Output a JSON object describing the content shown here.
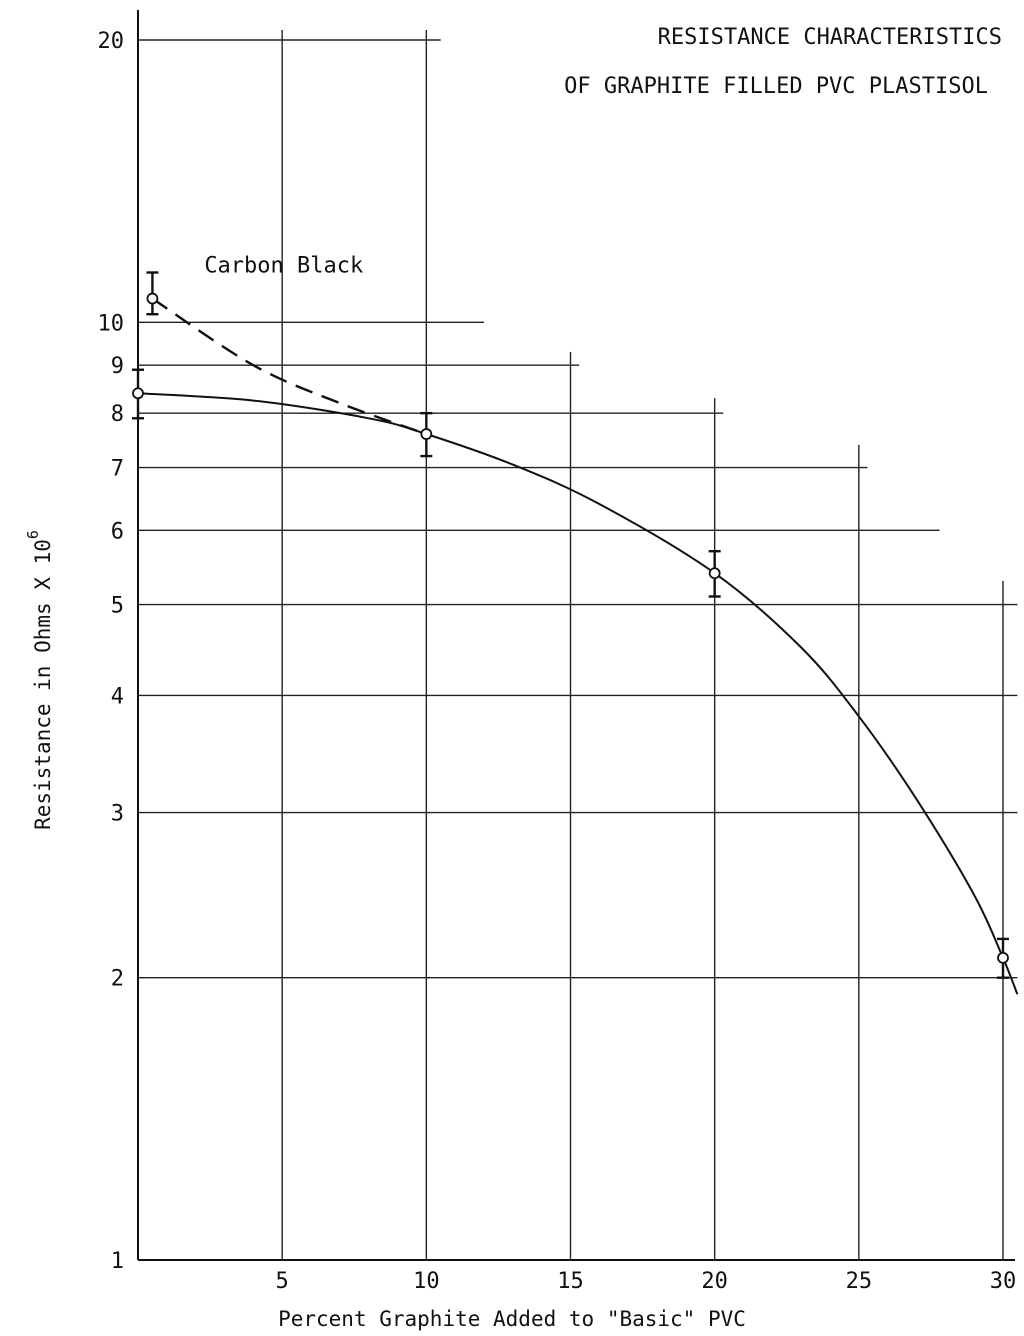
{
  "chart_data": {
    "type": "line",
    "title": "RESISTANCE CHARACTERISTICS",
    "subtitle": "OF GRAPHITE FILLED PVC PLASTISOL",
    "xlabel": "Percent Graphite Added to \"Basic\" PVC",
    "ylabel": "Resistance in Ohms X 10",
    "ylabel_exponent": "6",
    "x_scale": "linear",
    "y_scale": "log",
    "xlim": [
      0,
      30.5
    ],
    "ylim": [
      1,
      20
    ],
    "grid": true,
    "x_ticks": [
      {
        "value": 5,
        "label": "5"
      },
      {
        "value": 10,
        "label": "10"
      },
      {
        "value": 15,
        "label": "15"
      },
      {
        "value": 20,
        "label": "20"
      },
      {
        "value": 25,
        "label": "25"
      },
      {
        "value": 30,
        "label": "30"
      }
    ],
    "y_ticks": [
      {
        "value": 1,
        "label": "1"
      },
      {
        "value": 2,
        "label": "2"
      },
      {
        "value": 3,
        "label": "3"
      },
      {
        "value": 4,
        "label": "4"
      },
      {
        "value": 5,
        "label": "5"
      },
      {
        "value": 6,
        "label": "6"
      },
      {
        "value": 7,
        "label": "7"
      },
      {
        "value": 8,
        "label": "8"
      },
      {
        "value": 9,
        "label": "9"
      },
      {
        "value": 10,
        "label": "10"
      },
      {
        "value": 20,
        "label": "20"
      }
    ],
    "annotations": [
      {
        "text": "Carbon Black",
        "x": 2.3,
        "y": 11.3
      }
    ],
    "series": [
      {
        "style": "solid",
        "points": [
          {
            "x": 0,
            "y": 8.4,
            "err_low": 7.9,
            "err_high": 8.9
          },
          {
            "x": 10,
            "y": 7.6,
            "err_low": 7.2,
            "err_high": 8.0
          },
          {
            "x": 20,
            "y": 5.4,
            "err_low": 5.1,
            "err_high": 5.7
          },
          {
            "x": 30,
            "y": 2.1,
            "err_low": 2.0,
            "err_high": 2.2
          }
        ],
        "curve": [
          [
            0,
            8.4
          ],
          [
            4,
            8.25
          ],
          [
            8,
            7.9
          ],
          [
            10,
            7.6
          ],
          [
            13,
            7.05
          ],
          [
            16,
            6.4
          ],
          [
            20,
            5.4
          ],
          [
            23,
            4.5
          ],
          [
            25,
            3.8
          ],
          [
            27,
            3.1
          ],
          [
            29,
            2.45
          ],
          [
            30,
            2.1
          ],
          [
            30.5,
            1.92
          ]
        ]
      },
      {
        "style": "dashed",
        "label": "Carbon Black",
        "points": [
          {
            "x": 0.5,
            "y": 10.6,
            "err_low": 10.2,
            "err_high": 11.3
          }
        ],
        "curve": [
          [
            0.5,
            10.6
          ],
          [
            4,
            9.0
          ],
          [
            7,
            8.2
          ],
          [
            10,
            7.6
          ]
        ]
      }
    ]
  }
}
